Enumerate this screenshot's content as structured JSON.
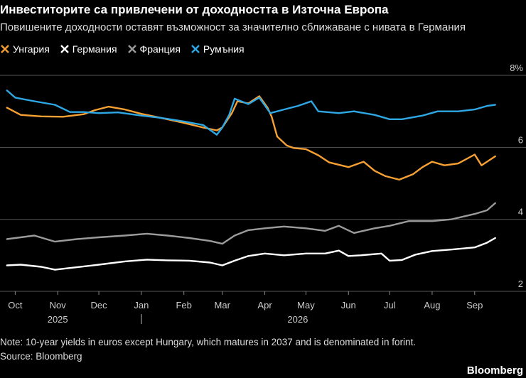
{
  "title": "Инвеститорите са привлечени от доходността в Източна Европа",
  "subtitle": "Повишените доходности оставят възможност за значително сближаване с нивата в Германия",
  "note": "Note: 10-year yields in euros except Hungary, which matures in 2037 and is denominated in forint.",
  "source": "Source: Bloomberg",
  "brand": "Bloomberg",
  "chart_data": {
    "type": "line",
    "x_unit": "month",
    "xlim": [
      "2025-09-22",
      "2026-09-26"
    ],
    "ylim": [
      2,
      8
    ],
    "y_ticks": [
      {
        "value": 8,
        "label": "8%"
      },
      {
        "value": 6,
        "label": "6"
      },
      {
        "value": 4,
        "label": "4"
      },
      {
        "value": 2,
        "label": "2"
      }
    ],
    "x_ticks": [
      {
        "date": "2025-10-01",
        "label": "Oct"
      },
      {
        "date": "2025-11-01",
        "label": "Nov"
      },
      {
        "date": "2025-12-01",
        "label": "Dec"
      },
      {
        "date": "2026-01-01",
        "label": "Jan"
      },
      {
        "date": "2026-02-01",
        "label": "Feb"
      },
      {
        "date": "2026-03-01",
        "label": "Mar"
      },
      {
        "date": "2026-04-01",
        "label": "Apr"
      },
      {
        "date": "2026-05-01",
        "label": "May"
      },
      {
        "date": "2026-06-01",
        "label": "Jun"
      },
      {
        "date": "2026-07-01",
        "label": "Jul"
      },
      {
        "date": "2026-08-01",
        "label": "Aug"
      },
      {
        "date": "2026-09-01",
        "label": "Sep"
      }
    ],
    "year_labels": [
      {
        "date": "2025-11-01",
        "label": "2025"
      },
      {
        "date": "2026-04-25",
        "label": "2026"
      }
    ],
    "year_divider": "2026-01-01",
    "grid": true,
    "legend_position": "top-left",
    "series": [
      {
        "name": "Унгария",
        "color": "#f7a033",
        "points": [
          [
            "2025-09-25",
            7.1
          ],
          [
            "2025-10-05",
            6.9
          ],
          [
            "2025-10-20",
            6.86
          ],
          [
            "2025-11-05",
            6.85
          ],
          [
            "2025-11-20",
            6.92
          ],
          [
            "2025-11-28",
            7.03
          ],
          [
            "2025-12-08",
            7.13
          ],
          [
            "2025-12-20",
            7.05
          ],
          [
            "2026-01-01",
            6.93
          ],
          [
            "2026-01-15",
            6.82
          ],
          [
            "2026-02-01",
            6.68
          ],
          [
            "2026-02-15",
            6.55
          ],
          [
            "2026-02-25",
            6.47
          ],
          [
            "2026-03-01",
            6.55
          ],
          [
            "2026-03-08",
            6.95
          ],
          [
            "2026-03-12",
            7.28
          ],
          [
            "2026-03-20",
            7.22
          ],
          [
            "2026-03-28",
            7.42
          ],
          [
            "2026-04-03",
            7.1
          ],
          [
            "2026-04-06",
            6.85
          ],
          [
            "2026-04-10",
            6.3
          ],
          [
            "2026-04-17",
            6.05
          ],
          [
            "2026-04-22",
            5.98
          ],
          [
            "2026-05-01",
            5.95
          ],
          [
            "2026-05-10",
            5.78
          ],
          [
            "2026-05-18",
            5.58
          ],
          [
            "2026-06-01",
            5.45
          ],
          [
            "2026-06-12",
            5.6
          ],
          [
            "2026-06-20",
            5.35
          ],
          [
            "2026-06-28",
            5.2
          ],
          [
            "2026-07-08",
            5.1
          ],
          [
            "2026-07-18",
            5.25
          ],
          [
            "2026-07-25",
            5.45
          ],
          [
            "2026-08-01",
            5.6
          ],
          [
            "2026-08-10",
            5.5
          ],
          [
            "2026-08-20",
            5.55
          ],
          [
            "2026-09-01",
            5.8
          ],
          [
            "2026-09-06",
            5.5
          ],
          [
            "2026-09-16",
            5.75
          ]
        ]
      },
      {
        "name": "Германия",
        "color": "#ffffff",
        "points": [
          [
            "2025-09-25",
            2.72
          ],
          [
            "2025-10-05",
            2.74
          ],
          [
            "2025-10-20",
            2.68
          ],
          [
            "2025-10-30",
            2.6
          ],
          [
            "2025-11-15",
            2.67
          ],
          [
            "2025-12-01",
            2.74
          ],
          [
            "2025-12-20",
            2.83
          ],
          [
            "2026-01-05",
            2.88
          ],
          [
            "2026-01-20",
            2.86
          ],
          [
            "2026-02-05",
            2.85
          ],
          [
            "2026-02-20",
            2.8
          ],
          [
            "2026-03-01",
            2.72
          ],
          [
            "2026-03-10",
            2.85
          ],
          [
            "2026-03-20",
            2.98
          ],
          [
            "2026-04-01",
            3.05
          ],
          [
            "2026-04-15",
            3.0
          ],
          [
            "2026-05-01",
            3.05
          ],
          [
            "2026-05-15",
            3.05
          ],
          [
            "2026-05-25",
            3.13
          ],
          [
            "2026-06-01",
            2.98
          ],
          [
            "2026-06-10",
            3.0
          ],
          [
            "2026-06-25",
            3.05
          ],
          [
            "2026-07-01",
            2.85
          ],
          [
            "2026-07-10",
            2.87
          ],
          [
            "2026-07-20",
            3.02
          ],
          [
            "2026-08-01",
            3.12
          ],
          [
            "2026-08-15",
            3.16
          ],
          [
            "2026-09-01",
            3.22
          ],
          [
            "2026-09-10",
            3.35
          ],
          [
            "2026-09-16",
            3.48
          ]
        ]
      },
      {
        "name": "Франция",
        "color": "#9b9b9b",
        "points": [
          [
            "2025-09-25",
            3.45
          ],
          [
            "2025-10-05",
            3.5
          ],
          [
            "2025-10-15",
            3.55
          ],
          [
            "2025-10-30",
            3.38
          ],
          [
            "2025-11-15",
            3.45
          ],
          [
            "2025-12-01",
            3.5
          ],
          [
            "2025-12-20",
            3.55
          ],
          [
            "2026-01-05",
            3.6
          ],
          [
            "2026-01-20",
            3.55
          ],
          [
            "2026-02-05",
            3.48
          ],
          [
            "2026-02-20",
            3.4
          ],
          [
            "2026-03-01",
            3.32
          ],
          [
            "2026-03-10",
            3.55
          ],
          [
            "2026-03-20",
            3.7
          ],
          [
            "2026-04-01",
            3.75
          ],
          [
            "2026-04-15",
            3.8
          ],
          [
            "2026-05-01",
            3.75
          ],
          [
            "2026-05-15",
            3.68
          ],
          [
            "2026-05-25",
            3.82
          ],
          [
            "2026-06-05",
            3.62
          ],
          [
            "2026-06-20",
            3.75
          ],
          [
            "2026-07-01",
            3.82
          ],
          [
            "2026-07-15",
            3.95
          ],
          [
            "2026-08-01",
            3.95
          ],
          [
            "2026-08-15",
            4.0
          ],
          [
            "2026-09-01",
            4.15
          ],
          [
            "2026-09-10",
            4.25
          ],
          [
            "2026-09-16",
            4.45
          ]
        ]
      },
      {
        "name": "Румъния",
        "color": "#2ea8e5",
        "points": [
          [
            "2025-09-25",
            7.58
          ],
          [
            "2025-10-01",
            7.38
          ],
          [
            "2025-10-15",
            7.28
          ],
          [
            "2025-10-30",
            7.18
          ],
          [
            "2025-11-10",
            6.98
          ],
          [
            "2025-11-20",
            6.98
          ],
          [
            "2025-12-01",
            6.95
          ],
          [
            "2025-12-15",
            6.97
          ],
          [
            "2026-01-01",
            6.88
          ],
          [
            "2026-01-15",
            6.82
          ],
          [
            "2026-02-01",
            6.72
          ],
          [
            "2026-02-15",
            6.62
          ],
          [
            "2026-02-25",
            6.35
          ],
          [
            "2026-03-01",
            6.55
          ],
          [
            "2026-03-06",
            6.9
          ],
          [
            "2026-03-10",
            7.35
          ],
          [
            "2026-03-20",
            7.2
          ],
          [
            "2026-03-28",
            7.38
          ],
          [
            "2026-04-05",
            6.95
          ],
          [
            "2026-04-15",
            7.05
          ],
          [
            "2026-04-25",
            7.15
          ],
          [
            "2026-05-05",
            7.28
          ],
          [
            "2026-05-10",
            7.0
          ],
          [
            "2026-05-25",
            6.95
          ],
          [
            "2026-06-05",
            7.0
          ],
          [
            "2026-06-20",
            6.9
          ],
          [
            "2026-07-01",
            6.78
          ],
          [
            "2026-07-10",
            6.78
          ],
          [
            "2026-07-25",
            6.88
          ],
          [
            "2026-08-05",
            7.0
          ],
          [
            "2026-08-20",
            7.0
          ],
          [
            "2026-09-01",
            7.05
          ],
          [
            "2026-09-10",
            7.15
          ],
          [
            "2026-09-16",
            7.18
          ]
        ]
      }
    ]
  }
}
